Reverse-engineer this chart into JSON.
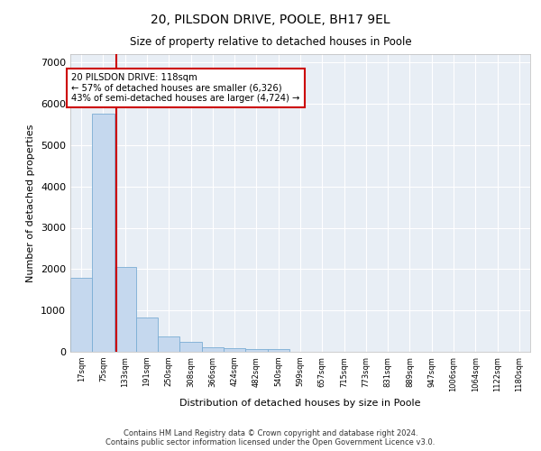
{
  "title_line1": "20, PILSDON DRIVE, POOLE, BH17 9EL",
  "title_line2": "Size of property relative to detached houses in Poole",
  "xlabel": "Distribution of detached houses by size in Poole",
  "ylabel": "Number of detached properties",
  "categories": [
    "17sqm",
    "75sqm",
    "133sqm",
    "191sqm",
    "250sqm",
    "308sqm",
    "366sqm",
    "424sqm",
    "482sqm",
    "540sqm",
    "599sqm",
    "657sqm",
    "715sqm",
    "773sqm",
    "831sqm",
    "889sqm",
    "947sqm",
    "1006sqm",
    "1064sqm",
    "1122sqm",
    "1180sqm"
  ],
  "values": [
    1800,
    5750,
    2050,
    830,
    380,
    230,
    120,
    80,
    70,
    55,
    0,
    0,
    0,
    0,
    0,
    0,
    0,
    0,
    0,
    0,
    0
  ],
  "bar_color": "#c5d8ee",
  "bar_edge_color": "#7aadd4",
  "annotation_line1": "20 PILSDON DRIVE: 118sqm",
  "annotation_line2": "← 57% of detached houses are smaller (6,326)",
  "annotation_line3": "43% of semi-detached houses are larger (4,724) →",
  "vline_x_index": 2.08,
  "ylim": [
    0,
    7200
  ],
  "yticks": [
    0,
    1000,
    2000,
    3000,
    4000,
    5000,
    6000,
    7000
  ],
  "background_color": "#e8eef5",
  "grid_color": "#ffffff",
  "footer_line1": "Contains HM Land Registry data © Crown copyright and database right 2024.",
  "footer_line2": "Contains public sector information licensed under the Open Government Licence v3.0."
}
